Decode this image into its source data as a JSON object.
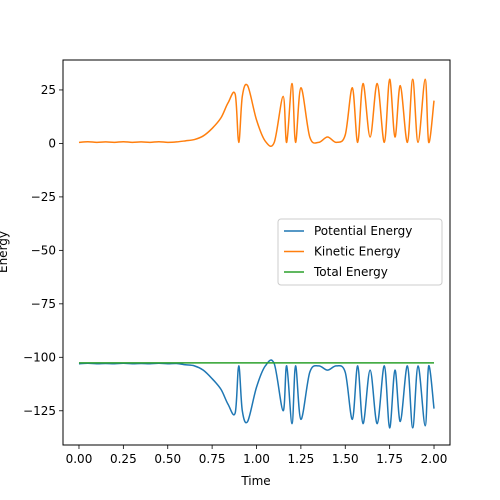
{
  "chart_data": {
    "type": "line",
    "title": "",
    "xlabel": "Time",
    "ylabel": "Energy",
    "xlim": [
      -0.09,
      2.09
    ],
    "ylim": [
      -141,
      39
    ],
    "xticks": [
      0.0,
      0.25,
      0.5,
      0.75,
      1.0,
      1.25,
      1.5,
      1.75,
      2.0
    ],
    "xtick_labels": [
      "0.00",
      "0.25",
      "0.50",
      "0.75",
      "1.00",
      "1.25",
      "1.50",
      "1.75",
      "2.00"
    ],
    "yticks": [
      25,
      0,
      -25,
      -50,
      -75,
      -100,
      -125
    ],
    "ytick_labels": [
      "25",
      "0",
      "−25",
      "−50",
      "−75",
      "−100",
      "−125"
    ],
    "grid": false,
    "legend_position": "center right",
    "series": [
      {
        "name": "Potential Energy",
        "color": "#1f77b4",
        "x": [
          0.0,
          0.05,
          0.1,
          0.15,
          0.2,
          0.25,
          0.3,
          0.35,
          0.4,
          0.45,
          0.5,
          0.55,
          0.6,
          0.65,
          0.7,
          0.75,
          0.8,
          0.84,
          0.88,
          0.9,
          0.92,
          0.95,
          1.0,
          1.05,
          1.1,
          1.15,
          1.17,
          1.2,
          1.22,
          1.25,
          1.3,
          1.35,
          1.4,
          1.45,
          1.5,
          1.54,
          1.57,
          1.6,
          1.64,
          1.68,
          1.72,
          1.75,
          1.78,
          1.81,
          1.85,
          1.88,
          1.91,
          1.95,
          1.97,
          2.0
        ],
        "y": [
          -103,
          -102.8,
          -103,
          -102.9,
          -103,
          -102.8,
          -103,
          -102.9,
          -103,
          -102.8,
          -103,
          -102.9,
          -103.5,
          -104,
          -106,
          -110,
          -115,
          -122,
          -126,
          -104,
          -125,
          -130,
          -114,
          -104,
          -103,
          -125,
          -104,
          -131,
          -104,
          -129,
          -107,
          -104,
          -106,
          -104,
          -107,
          -129,
          -104,
          -131,
          -106,
          -131,
          -104,
          -133,
          -106,
          -130,
          -104,
          -133,
          -104,
          -132,
          -104,
          -124
        ]
      },
      {
        "name": "Kinetic Energy",
        "color": "#ff7f0e",
        "x": [
          0.0,
          0.05,
          0.1,
          0.15,
          0.2,
          0.25,
          0.3,
          0.35,
          0.4,
          0.45,
          0.5,
          0.55,
          0.6,
          0.65,
          0.7,
          0.75,
          0.8,
          0.84,
          0.88,
          0.9,
          0.92,
          0.95,
          1.0,
          1.05,
          1.1,
          1.15,
          1.17,
          1.2,
          1.22,
          1.25,
          1.3,
          1.35,
          1.4,
          1.45,
          1.5,
          1.54,
          1.57,
          1.6,
          1.64,
          1.68,
          1.72,
          1.75,
          1.78,
          1.81,
          1.85,
          1.88,
          1.91,
          1.95,
          1.97,
          2.0
        ],
        "y": [
          0.5,
          0.8,
          0.5,
          0.7,
          0.5,
          0.8,
          0.5,
          0.7,
          0.5,
          0.8,
          0.5,
          0.7,
          1.2,
          1.8,
          3.5,
          7,
          12,
          19,
          23,
          0.5,
          22,
          27,
          11,
          1,
          0.5,
          22,
          0.5,
          28,
          0.5,
          26,
          3,
          0.5,
          3,
          0.5,
          4,
          26,
          0.5,
          28,
          3,
          28,
          0.5,
          30,
          3,
          27,
          0.5,
          30,
          0.5,
          30,
          0.5,
          20
        ]
      },
      {
        "name": "Total Energy",
        "color": "#2ca02c",
        "x": [
          0.0,
          0.25,
          0.5,
          0.75,
          1.0,
          1.25,
          1.5,
          1.75,
          2.0
        ],
        "y": [
          -102.6,
          -102.6,
          -102.6,
          -102.6,
          -102.6,
          -102.6,
          -102.6,
          -102.6,
          -102.6
        ]
      }
    ]
  }
}
